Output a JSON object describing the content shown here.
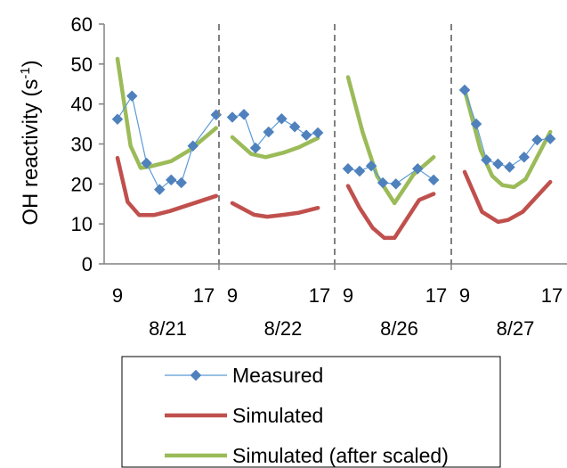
{
  "chart_data": {
    "type": "line",
    "ylabel": "OH reactivity (s",
    "ylabel_sup": "-1",
    "ylabel_close": ")",
    "ylim": [
      0,
      60
    ],
    "yticks": [
      0,
      10,
      20,
      30,
      40,
      50,
      60
    ],
    "x_range_per_panel": [
      9,
      17
    ],
    "panels": [
      {
        "date": "8/21",
        "x_start": "9",
        "x_end": "17",
        "measured": [
          [
            9,
            36.2
          ],
          [
            10,
            42
          ],
          [
            11,
            25.2
          ],
          [
            11.9,
            18.6
          ],
          [
            12.7,
            21
          ],
          [
            13.4,
            20.3
          ],
          [
            14.2,
            29.5
          ],
          [
            15.8,
            37.3
          ]
        ],
        "simulated": [
          [
            9,
            26.5
          ],
          [
            9.7,
            15.5
          ],
          [
            10.5,
            12.2
          ],
          [
            11.5,
            12.2
          ],
          [
            12.6,
            13.2
          ],
          [
            15.8,
            17
          ]
        ],
        "scaled": [
          [
            9,
            51.3
          ],
          [
            9.9,
            29.5
          ],
          [
            10.6,
            24
          ],
          [
            11.3,
            24.4
          ],
          [
            12.7,
            25.7
          ],
          [
            14,
            28.5
          ],
          [
            15.8,
            34
          ]
        ]
      },
      {
        "date": "8/22",
        "x_start": "9",
        "x_end": "17",
        "measured": [
          [
            9,
            36.7
          ],
          [
            9.8,
            37.4
          ],
          [
            10.6,
            29
          ],
          [
            11.5,
            33
          ],
          [
            12.4,
            36.3
          ],
          [
            13.3,
            34.3
          ],
          [
            14.1,
            32.2
          ],
          [
            14.9,
            32.8
          ]
        ],
        "simulated": [
          [
            9,
            15.2
          ],
          [
            10.5,
            12.3
          ],
          [
            11.4,
            11.8
          ],
          [
            12.6,
            12.3
          ],
          [
            13.6,
            12.8
          ],
          [
            14.9,
            14
          ]
        ],
        "scaled": [
          [
            9,
            31.7
          ],
          [
            10.3,
            27.5
          ],
          [
            11.3,
            26.7
          ],
          [
            12.6,
            27.9
          ],
          [
            13.6,
            29.2
          ],
          [
            14.9,
            31.5
          ]
        ]
      },
      {
        "date": "8/26",
        "x_start": "9",
        "x_end": "17",
        "measured": [
          [
            9,
            23.8
          ],
          [
            9.8,
            23.2
          ],
          [
            10.6,
            24.5
          ],
          [
            11.4,
            20.3
          ],
          [
            12.3,
            20
          ],
          [
            13.8,
            23.8
          ],
          [
            14.9,
            21
          ]
        ],
        "simulated": [
          [
            9,
            19.5
          ],
          [
            9.8,
            14
          ],
          [
            10.7,
            9
          ],
          [
            11.5,
            6.5
          ],
          [
            12.2,
            6.5
          ],
          [
            13.9,
            16
          ],
          [
            14.9,
            17.5
          ]
        ],
        "scaled": [
          [
            9,
            46.7
          ],
          [
            10,
            33
          ],
          [
            11,
            22
          ],
          [
            12.2,
            15.2
          ],
          [
            13.5,
            22.3
          ],
          [
            14.9,
            26.7
          ]
        ]
      },
      {
        "date": "8/27",
        "x_start": "9",
        "x_end": "17",
        "measured": [
          [
            9,
            43.5
          ],
          [
            9.8,
            35
          ],
          [
            10.5,
            26
          ],
          [
            11.3,
            25
          ],
          [
            12.1,
            24.2
          ],
          [
            13.1,
            26.7
          ],
          [
            14,
            31
          ],
          [
            14.9,
            31.3
          ]
        ],
        "simulated": [
          [
            9,
            23
          ],
          [
            10.2,
            13
          ],
          [
            11.3,
            10.5
          ],
          [
            12,
            11
          ],
          [
            13,
            13
          ],
          [
            14.9,
            20.5
          ]
        ],
        "scaled": [
          [
            9,
            43.5
          ],
          [
            10.1,
            28.5
          ],
          [
            10.9,
            22
          ],
          [
            11.6,
            19.7
          ],
          [
            12.4,
            19.2
          ],
          [
            13.2,
            21.2
          ],
          [
            14.9,
            33
          ]
        ]
      }
    ],
    "legend": {
      "position": "bottom",
      "entries": [
        {
          "name": "Measured",
          "key": "measured"
        },
        {
          "name": "Simulated",
          "key": "simulated"
        },
        {
          "name": "Simulated (after scaled)",
          "key": "scaled"
        }
      ]
    },
    "colors": {
      "measured_line": "#5b9bd5",
      "measured_marker": "#4f81bd",
      "simulated": "#c0504d",
      "scaled": "#9bbb59",
      "axis": "#808080",
      "divider": "#808080"
    }
  }
}
